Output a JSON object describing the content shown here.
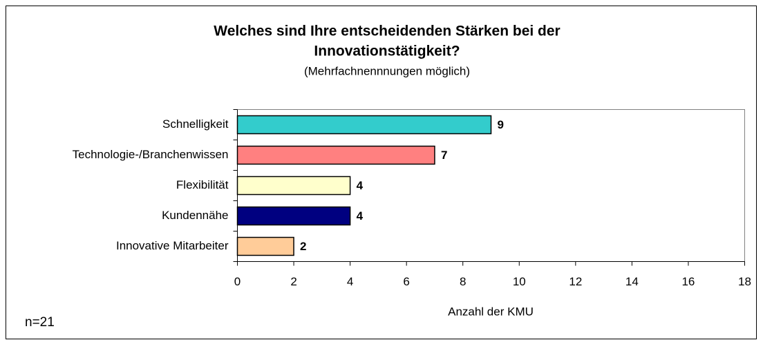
{
  "chart_data": {
    "type": "bar",
    "orientation": "horizontal",
    "title": [
      "Welches sind Ihre entscheidenden Stärken bei der",
      "Innovationstätigkeit?"
    ],
    "subtitle": "(Mehrfachnennnungen möglich)",
    "categories": [
      "Schnelligkeit",
      "Technologie-/Branchenwissen",
      "Flexibilität",
      "Kundennähe",
      "Innovative Mitarbeiter"
    ],
    "values": [
      9,
      7,
      4,
      4,
      2
    ],
    "colors": [
      "#33cccc",
      "#ff8080",
      "#ffffcc",
      "#000080",
      "#ffcc99"
    ],
    "xlim": [
      0,
      18
    ],
    "xticks": [
      0,
      2,
      4,
      6,
      8,
      10,
      12,
      14,
      16,
      18
    ],
    "xlabel": "Anzahl der KMU",
    "annotation": "n=21"
  }
}
